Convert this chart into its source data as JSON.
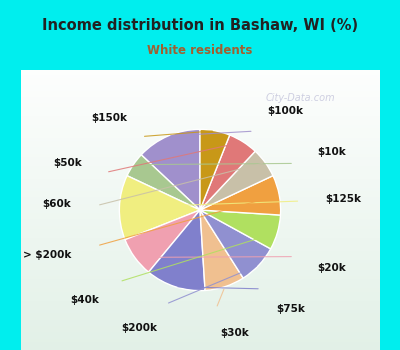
{
  "title": "Income distribution in Bashaw, WI (%)",
  "subtitle": "White residents",
  "title_color": "#222222",
  "subtitle_color": "#a06030",
  "bg_cyan": "#00eeee",
  "bg_chart": "#e8f5ee",
  "watermark": "City-Data.com",
  "labels": [
    "$100k",
    "$10k",
    "$125k",
    "$20k",
    "$75k",
    "$30k",
    "$200k",
    "$40k",
    "> $200k",
    "$60k",
    "$50k",
    "$150k"
  ],
  "values": [
    13,
    5,
    13,
    8,
    12,
    8,
    8,
    7,
    8,
    6,
    6,
    6
  ],
  "colors": [
    "#a090cc",
    "#a8c890",
    "#f0ee80",
    "#f0a0b0",
    "#8080cc",
    "#f0c090",
    "#9090d0",
    "#b0e060",
    "#f0a040",
    "#c8c0a8",
    "#e07878",
    "#c89818"
  ],
  "startangle": 90,
  "label_fontsize": 7.5,
  "label_fontweight": "bold"
}
